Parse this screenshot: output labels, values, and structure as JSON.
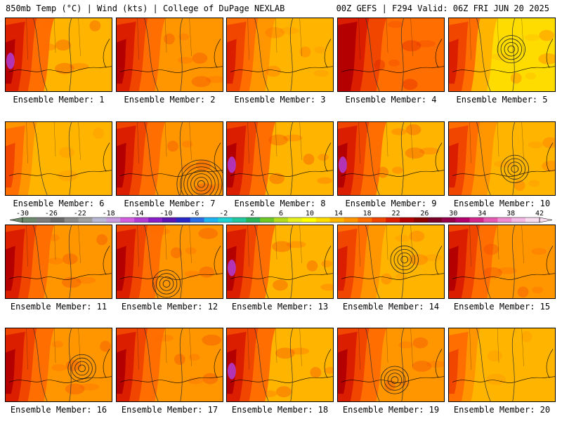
{
  "header": {
    "left": "850mb Temp (°C) | Wind (kts) | College of DuPage NEXLAB",
    "right": "00Z GEFS | F294 Valid: 06Z FRI JUN 20 2025"
  },
  "members": [
    {
      "label": "Ensemble Member: 1",
      "style": "hot-west",
      "low": null
    },
    {
      "label": "Ensemble Member: 2",
      "style": "warm-red",
      "low": null
    },
    {
      "label": "Ensemble Member: 3",
      "style": "orange-red",
      "low": null
    },
    {
      "label": "Ensemble Member: 4",
      "style": "red-center",
      "low": null
    },
    {
      "label": "Ensemble Member: 5",
      "style": "yellow-low",
      "low": "upper-right"
    },
    {
      "label": "Ensemble Member: 6",
      "style": "orange",
      "low": null
    },
    {
      "label": "Ensemble Member: 7",
      "style": "red-low",
      "low": "lower-right"
    },
    {
      "label": "Ensemble Member: 8",
      "style": "hot-west",
      "low": null
    },
    {
      "label": "Ensemble Member: 9",
      "style": "hot-west",
      "low": null
    },
    {
      "label": "Ensemble Member: 10",
      "style": "orange-low",
      "low": "center-right"
    },
    {
      "label": "Ensemble Member: 11",
      "style": "red-west",
      "low": null
    },
    {
      "label": "Ensemble Member: 12",
      "style": "red-low",
      "low": "center"
    },
    {
      "label": "Ensemble Member: 13",
      "style": "hot-west",
      "low": null
    },
    {
      "label": "Ensemble Member: 14",
      "style": "orange-low",
      "low": "center-big"
    },
    {
      "label": "Ensemble Member: 15",
      "style": "red-west",
      "low": null
    },
    {
      "label": "Ensemble Member: 16",
      "style": "red-low",
      "low": "right"
    },
    {
      "label": "Ensemble Member: 17",
      "style": "warm-red",
      "low": null
    },
    {
      "label": "Ensemble Member: 18",
      "style": "hot-west",
      "low": null
    },
    {
      "label": "Ensemble Member: 19",
      "style": "red-low",
      "low": "center-low"
    },
    {
      "label": "Ensemble Member: 20",
      "style": "orange",
      "low": null
    }
  ],
  "colorbar": {
    "ticks": [
      "-30",
      "-26",
      "-22",
      "-18",
      "-14",
      "-10",
      "-6",
      "-2",
      "2",
      "6",
      "10",
      "14",
      "18",
      "22",
      "26",
      "30",
      "34",
      "38",
      "42"
    ],
    "colors": [
      "#6e8a6e",
      "#7d7d7d",
      "#6a6a6a",
      "#8a8a8a",
      "#a0a0a0",
      "#b9b9d6",
      "#c89be0",
      "#d45fe0",
      "#b23cd4",
      "#8a1ec8",
      "#5a14b4",
      "#2828c8",
      "#2a6ee6",
      "#1eb4f0",
      "#20d2d2",
      "#22c8a0",
      "#2ab45a",
      "#6ec828",
      "#b4dc1e",
      "#e6f01e",
      "#ffff00",
      "#ffdc00",
      "#ffb400",
      "#ff9600",
      "#ff6e00",
      "#f04600",
      "#dc1e00",
      "#b40000",
      "#8c0000",
      "#7a0028",
      "#96004b",
      "#b4006e",
      "#d2288c",
      "#e65ab4",
      "#f08cd2",
      "#f5b9e6",
      "#fadcf0"
    ]
  },
  "colors": {
    "yellow": "#ffdc00",
    "orange": "#ffb400",
    "orange_dark": "#ff9600",
    "red_orange": "#ff6e00",
    "red": "#f04600",
    "red_dark": "#dc1e00",
    "maroon": "#b40000",
    "magenta": "#b23cd4"
  }
}
